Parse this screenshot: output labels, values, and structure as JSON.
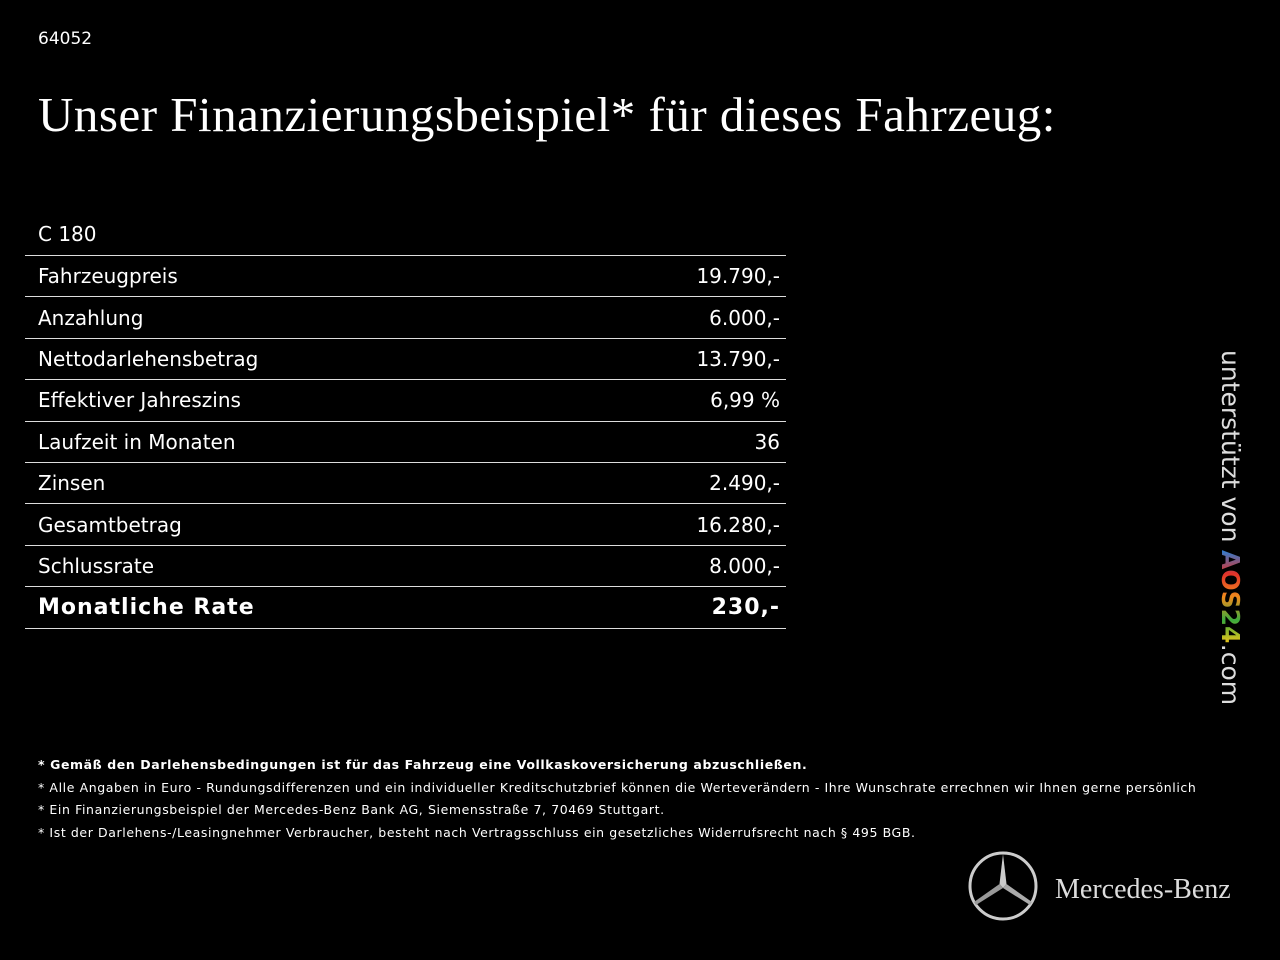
{
  "header": {
    "code": "64052",
    "title": "Unser Finanzierungsbeispiel* für dieses Fahrzeug:"
  },
  "table": {
    "model": "C 180",
    "rows": [
      [
        "Fahrzeugpreis",
        "19.790,-"
      ],
      [
        "Anzahlung",
        "6.000,-"
      ],
      [
        "Nettodarlehensbetrag",
        "13.790,-"
      ],
      [
        "Effektiver Jahreszins",
        "6,99 %"
      ],
      [
        "Laufzeit in Monaten",
        "36"
      ],
      [
        "Zinsen",
        "2.490,-"
      ],
      [
        "Gesamtbetrag",
        "16.280,-"
      ],
      [
        "Schlussrate",
        "8.000,-"
      ]
    ],
    "total": [
      "Monatliche Rate",
      "230,-"
    ]
  },
  "footnotes": [
    "* Gemäß den Darlehensbedingungen ist für das Fahrzeug eine Vollkaskoversicherung abzuschließen.",
    "* Alle Angaben in Euro - Rundungsdifferenzen und ein individueller Kreditschutzbrief können die Werteverändern - Ihre Wunschrate errechnen wir Ihnen gerne persönlich",
    "* Ein Finanzierungsbeispiel der Mercedes-Benz Bank AG, Siemensstraße 7, 70469 Stuttgart.",
    "* Ist der Darlehens-/Leasingnehmer Verbraucher, besteht nach Vertragsschluss ein gesetzliches Widerrufsrecht nach § 495 BGB."
  ],
  "sidebar": {
    "text": "unterstützt von",
    "brand": "AOS24",
    "domain": ".com"
  },
  "logo": {
    "text": "Mercedes-Benz"
  }
}
